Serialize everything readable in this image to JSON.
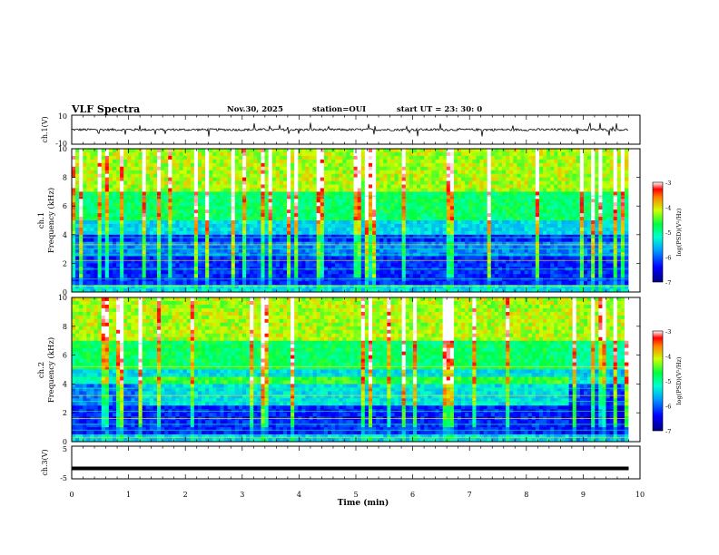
{
  "header": {
    "title": "VLF Spectra",
    "date": "Nov.30, 2025",
    "station": "station=OUI",
    "start_ut": "start  UT =   23: 30: 0"
  },
  "chart_data": [
    {
      "type": "line",
      "panel": "ch1-waveform",
      "ylabel": "ch.1(V)",
      "ylim": [
        -10,
        10
      ],
      "ytick_labels": [
        "10",
        "-10"
      ],
      "x": [
        0,
        10
      ],
      "description_values": {
        "baseline": 0,
        "spike_peak": 3
      }
    },
    {
      "type": "heatmap",
      "panel": "ch1-spectrogram",
      "ylabel": "ch.1\nFrequency (kHz)",
      "ylim": [
        0,
        10
      ],
      "ytick_labels": [
        "0",
        "2",
        "4",
        "6",
        "8",
        "10"
      ],
      "colorbar": {
        "label": "log(PSD)(V²/Hz)",
        "range": [
          -7,
          -3
        ],
        "tick_labels": [
          "-3",
          "-4",
          "-5",
          "-6",
          "-7"
        ]
      }
    },
    {
      "type": "heatmap",
      "panel": "ch2-spectrogram",
      "ylabel": "ch.2\nFrequency (kHz)",
      "ylim": [
        0,
        10
      ],
      "ytick_labels": [
        "0",
        "2",
        "4",
        "6",
        "8",
        "10"
      ],
      "colorbar": {
        "label": "log(PSD)(V²/Hz)",
        "range": [
          -7,
          -3
        ],
        "tick_labels": [
          "-3",
          "-4",
          "-5",
          "-6",
          "-7"
        ]
      }
    },
    {
      "type": "line",
      "panel": "ch3-waveform",
      "ylabel": "ch.3(V)",
      "ylim": [
        -5,
        5
      ],
      "ytick_labels": [
        "5",
        "-5"
      ],
      "x": [
        0,
        9.8
      ],
      "y": [
        -1.8,
        -1.8
      ]
    }
  ],
  "x_axis": {
    "label": "Time (min)",
    "range": [
      0,
      10
    ],
    "tick_labels": [
      "0",
      "1",
      "2",
      "3",
      "4",
      "5",
      "6",
      "7",
      "8",
      "9",
      "10"
    ]
  },
  "colors": {
    "low": "#00008b",
    "mid_low": "#0064ff",
    "mid": "#00e5c8",
    "mid_high": "#00ff40",
    "high": "#ffff00",
    "max": "#ff0000"
  }
}
